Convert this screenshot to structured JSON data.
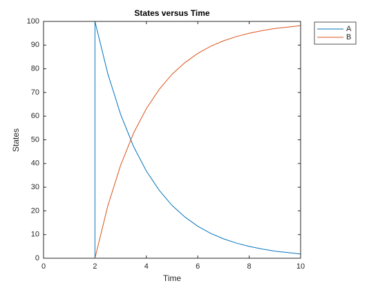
{
  "chart_data": {
    "type": "line",
    "title": "States versus Time",
    "x_label": "Time",
    "y_label": "States",
    "x": [
      0,
      2,
      2,
      2.5,
      3,
      3.5,
      4,
      4.5,
      5,
      5.5,
      6,
      6.5,
      7,
      7.5,
      8,
      8.5,
      9,
      9.5,
      10
    ],
    "series": [
      {
        "name": "A",
        "color": "#0072bd",
        "values": [
          0,
          0,
          100,
          77.9,
          60.7,
          47.2,
          36.8,
          28.7,
          22.3,
          17.4,
          13.5,
          10.5,
          8.2,
          6.4,
          5.0,
          3.9,
          3.0,
          2.4,
          1.8
        ]
      },
      {
        "name": "B",
        "color": "#d95319",
        "values": [
          0,
          0,
          0,
          22.1,
          39.3,
          52.8,
          63.2,
          71.3,
          77.7,
          82.6,
          86.5,
          89.5,
          91.8,
          93.6,
          95.0,
          96.1,
          97.0,
          97.6,
          98.2
        ]
      }
    ],
    "xlim": [
      0,
      10
    ],
    "xticks": [
      0,
      2,
      4,
      6,
      8,
      10
    ],
    "ylim": [
      0,
      100
    ],
    "yticks": [
      0,
      10,
      20,
      30,
      40,
      50,
      60,
      70,
      80,
      90,
      100
    ],
    "legend": "outside-top-right"
  }
}
